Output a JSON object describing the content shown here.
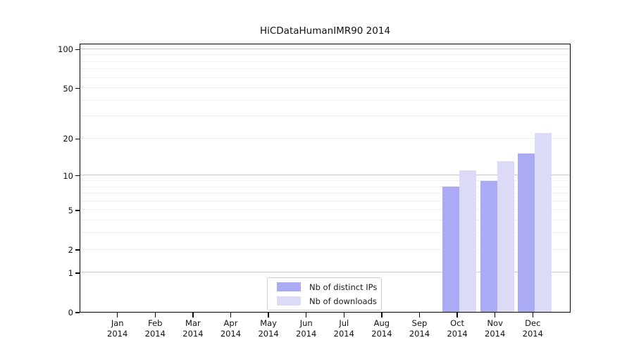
{
  "title": "HiCDataHumanIMR90 2014",
  "legend": {
    "items": [
      {
        "label": "Nb of distinct IPs",
        "color": "#aaaaf5"
      },
      {
        "label": "Nb of downloads",
        "color": "#dbdbf8"
      }
    ]
  },
  "colors": {
    "spine": "#000000",
    "grid_major": "#c9c9c9",
    "grid_minor": "#efefef",
    "legend_border": "#cccccc",
    "bar_distinct_ips": "#aaaaf5",
    "bar_downloads": "#dbdbf8"
  },
  "chart_data": {
    "type": "bar",
    "title": "HiCDataHumanIMR90 2014",
    "x_months": [
      "Jan",
      "Feb",
      "Mar",
      "Apr",
      "May",
      "Jun",
      "Jul",
      "Aug",
      "Sep",
      "Oct",
      "Nov",
      "Dec"
    ],
    "x_year": "2014",
    "y_scale": "symlog(log1p)",
    "ylim": [
      0,
      110
    ],
    "y_tick_labels": [
      0,
      1,
      2,
      5,
      10,
      20,
      50,
      100
    ],
    "grid": "horizontal, major at 1/10/100 darker, minor at other integers lighter",
    "legend_position": "bottom-center inside plot",
    "series": [
      {
        "name": "Nb of distinct IPs",
        "color": "#aaaaf5",
        "values": [
          0,
          0,
          0,
          0,
          0,
          0,
          0,
          0,
          0,
          8,
          9,
          15
        ]
      },
      {
        "name": "Nb of downloads",
        "color": "#dbdbf8",
        "values": [
          0,
          0,
          0,
          0,
          0,
          0,
          0,
          0,
          0,
          11,
          13,
          22
        ]
      }
    ]
  }
}
